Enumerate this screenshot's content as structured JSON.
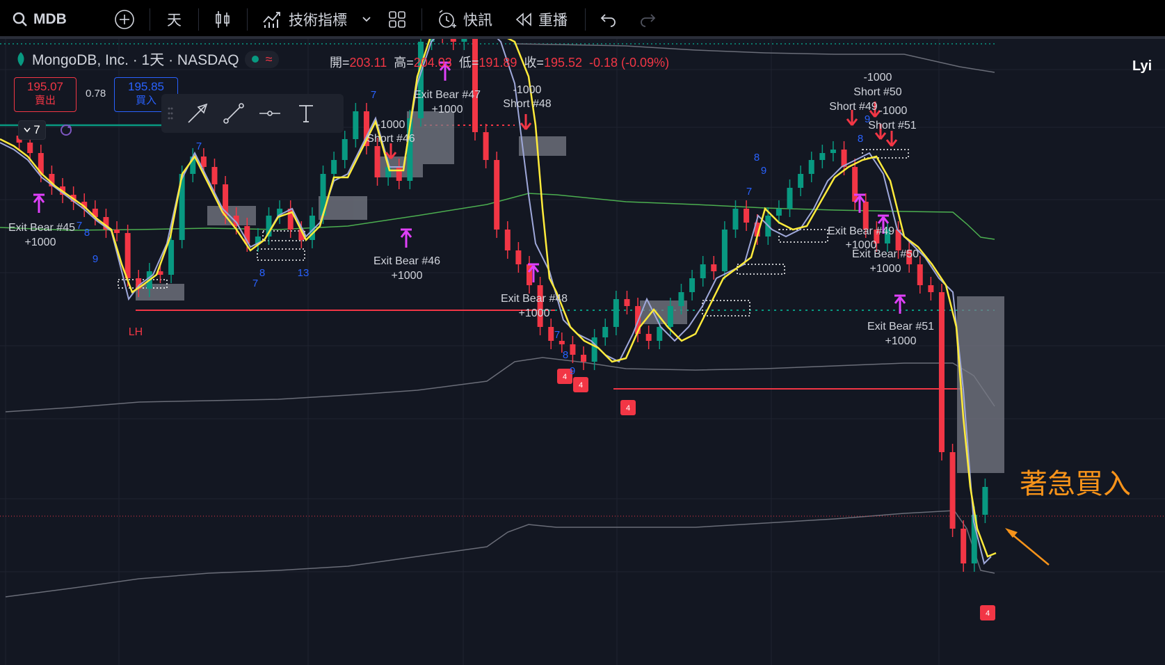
{
  "toolbar": {
    "symbol": "MDB",
    "interval": "天",
    "indicators_label": "技術指標",
    "alerts_label": "快訊",
    "replay_label": "重播"
  },
  "legend": {
    "title": "MongoDB, Inc. · 1天 · NASDAQ",
    "open_label": "開=",
    "open": "203.11",
    "high_label": "高=",
    "high": "204.03",
    "low_label": "低=",
    "low": "191.89",
    "close_label": "收=",
    "close": "195.52",
    "change": "-0.18 (-0.09%)"
  },
  "trade": {
    "sell_price": "195.07",
    "sell_label": "賣出",
    "spread": "0.78",
    "buy_price": "195.85",
    "buy_label": "買入"
  },
  "interval_selector": "7",
  "corner_text": "Lyi",
  "annotation": "著急買入",
  "colors": {
    "up": "#089981",
    "down": "#f23645",
    "fast_ma": "#ffeb3b",
    "slow_ma": "#9fa8da",
    "band_upper": "#4caf50",
    "arrow": "#f7931a",
    "signal": "#e040fb"
  },
  "chart_labels": {
    "lh": "LH",
    "exit_45": "Exit Bear #45",
    "exit_46": "Exit Bear #46",
    "exit_47": "Exit Bear #47",
    "exit_48": "Exit Bear #48",
    "exit_49": "Exit Bear #49",
    "exit_50": "Exit Bear #50",
    "exit_51": "Exit Bear #51",
    "short_46": "Short #46",
    "short_48": "Short #48",
    "short_49": "Short #49",
    "short_50": "Short #50",
    "short_51": "Short #51",
    "plus": "+1000",
    "minus": "-1000",
    "badge": "4",
    "seq": [
      "7",
      "8",
      "9",
      "13"
    ]
  }
}
